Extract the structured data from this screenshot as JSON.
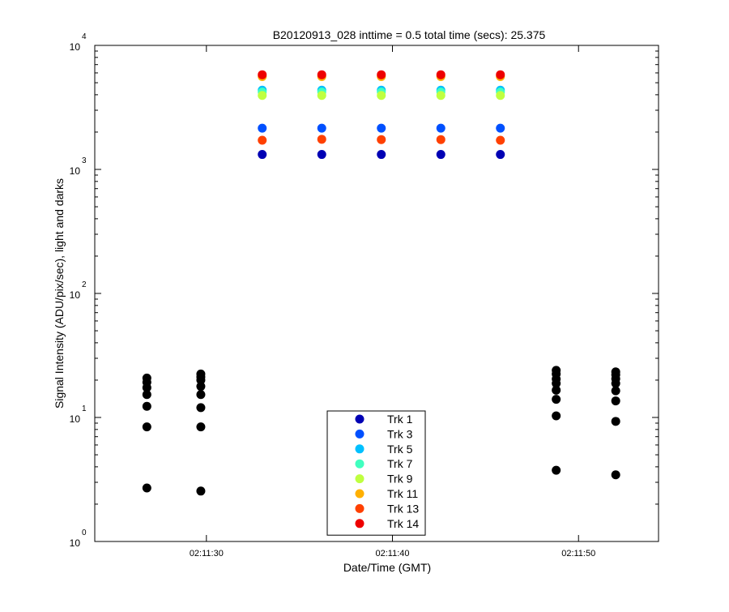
{
  "chart_data": {
    "type": "scatter",
    "title": "B20120913_028 inttime = 0.5 total time (secs): 25.375",
    "xlabel": "Date/Time (GMT)",
    "ylabel": "Signal Intensity (ADU/pix/sec), light and darks",
    "yscale": "log",
    "ylim": [
      1,
      10000
    ],
    "xlim": [
      "02:11:24",
      "02:11:54.3"
    ],
    "xticks": [
      "02:11:30",
      "02:11:40",
      "02:11:50"
    ],
    "yticks": [
      {
        "value": 1,
        "base": "10",
        "exp": "0"
      },
      {
        "value": 10,
        "base": "10",
        "exp": "1"
      },
      {
        "value": 100,
        "base": "10",
        "exp": "2"
      },
      {
        "value": 1000,
        "base": "10",
        "exp": "3"
      },
      {
        "value": 10000,
        "base": "10",
        "exp": "4"
      }
    ],
    "grid": false,
    "legend_position": "bottom-center",
    "series": [
      {
        "name": "Trk 1",
        "color": "#0000b4",
        "x": [
          "02:11:33",
          "02:11:36.2",
          "02:11:39.4",
          "02:11:42.6",
          "02:11:45.8"
        ],
        "y": [
          1320,
          1320,
          1320,
          1320,
          1320
        ]
      },
      {
        "name": "Trk 3",
        "color": "#0050ff",
        "x": [
          "02:11:33",
          "02:11:36.2",
          "02:11:39.4",
          "02:11:42.6",
          "02:11:45.8"
        ],
        "y": [
          2150,
          2150,
          2150,
          2150,
          2150
        ]
      },
      {
        "name": "Trk 5",
        "color": "#00c0ff",
        "x": [
          "02:11:33",
          "02:11:36.2",
          "02:11:39.4",
          "02:11:42.6",
          "02:11:45.8"
        ],
        "y": [
          4350,
          4350,
          4350,
          4350,
          4350
        ]
      },
      {
        "name": "Trk 7",
        "color": "#40ffbf",
        "x": [
          "02:11:33",
          "02:11:36.2",
          "02:11:39.4",
          "02:11:42.6",
          "02:11:45.8"
        ],
        "y": [
          4200,
          4200,
          4200,
          4200,
          4200
        ]
      },
      {
        "name": "Trk 9",
        "color": "#bfff40",
        "x": [
          "02:11:33",
          "02:11:36.2",
          "02:11:39.4",
          "02:11:42.6",
          "02:11:45.8"
        ],
        "y": [
          3950,
          3950,
          3950,
          3950,
          3950
        ]
      },
      {
        "name": "Trk 11",
        "color": "#ffb000",
        "x": [
          "02:11:33",
          "02:11:36.2",
          "02:11:39.4",
          "02:11:42.6",
          "02:11:45.8"
        ],
        "y": [
          5600,
          5600,
          5600,
          5600,
          5600
        ]
      },
      {
        "name": "Trk 13",
        "color": "#ff4000",
        "x": [
          "02:11:33",
          "02:11:36.2",
          "02:11:39.4",
          "02:11:42.6",
          "02:11:45.8"
        ],
        "y": [
          1720,
          1750,
          1740,
          1740,
          1720
        ]
      },
      {
        "name": "Trk 14",
        "color": "#ee0000",
        "x": [
          "02:11:33",
          "02:11:36.2",
          "02:11:39.4",
          "02:11:42.6",
          "02:11:45.8"
        ],
        "y": [
          5800,
          5800,
          5800,
          5800,
          5800
        ]
      }
    ],
    "darks": {
      "color": "#000000",
      "points": [
        {
          "x": "02:11:26.8",
          "y": [
            2.7,
            8.4,
            12.3,
            15.3,
            17.4,
            19.2,
            20.8
          ]
        },
        {
          "x": "02:11:29.7",
          "y": [
            2.55,
            8.4,
            12.0,
            15.3,
            17.8,
            20.0,
            21.2,
            22.4
          ]
        },
        {
          "x": "02:11:48.8",
          "y": [
            3.75,
            10.3,
            14.0,
            16.6,
            18.8,
            20.4,
            22.4,
            24.0
          ]
        },
        {
          "x": "02:11:52.0",
          "y": [
            3.45,
            9.3,
            13.6,
            16.4,
            18.8,
            20.5,
            22.1,
            23.3
          ]
        }
      ]
    }
  }
}
